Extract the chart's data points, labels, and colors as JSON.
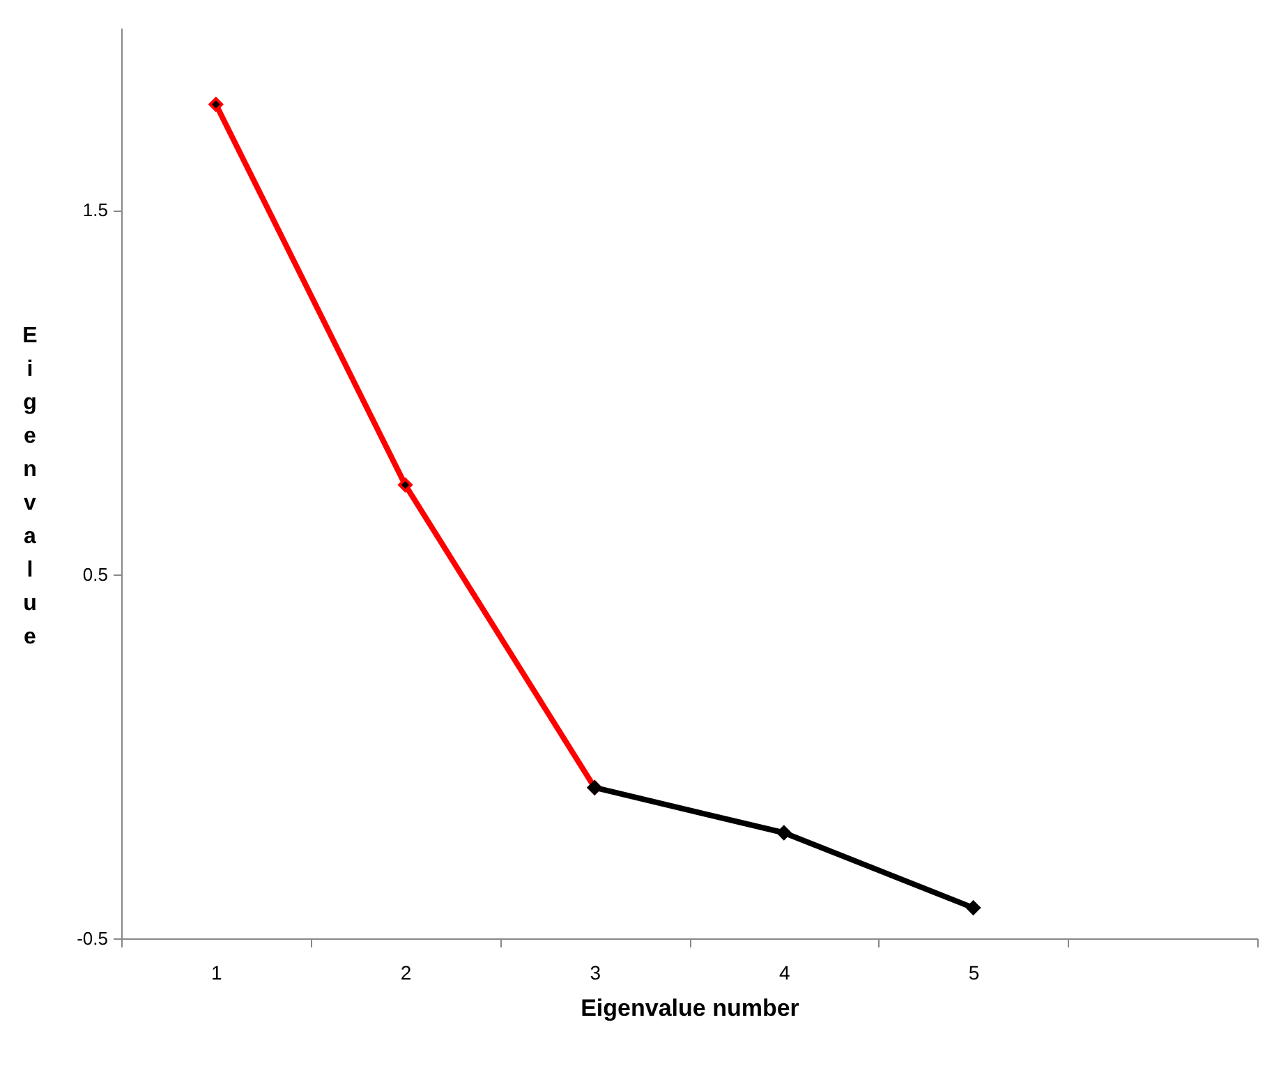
{
  "chart_data": {
    "type": "line",
    "xlabel": "Eigenvalue number",
    "ylabel": "Eigenvalue",
    "categories": [
      "1",
      "2",
      "3",
      "4",
      "5",
      null
    ],
    "series": [
      {
        "color": "#ff0000",
        "values": [
          1.79,
          0.745,
          -0.086,
          null,
          null,
          null
        ]
      },
      {
        "color": "#000000",
        "values": [
          null,
          null,
          -0.086,
          -0.21,
          -0.416,
          null
        ]
      }
    ],
    "ylim": [
      -0.5,
      2.0
    ],
    "yticks": [
      -0.5,
      0.5,
      1.5
    ],
    "grid": false,
    "legend": false,
    "marker": "diamond",
    "line_style": "solid"
  }
}
